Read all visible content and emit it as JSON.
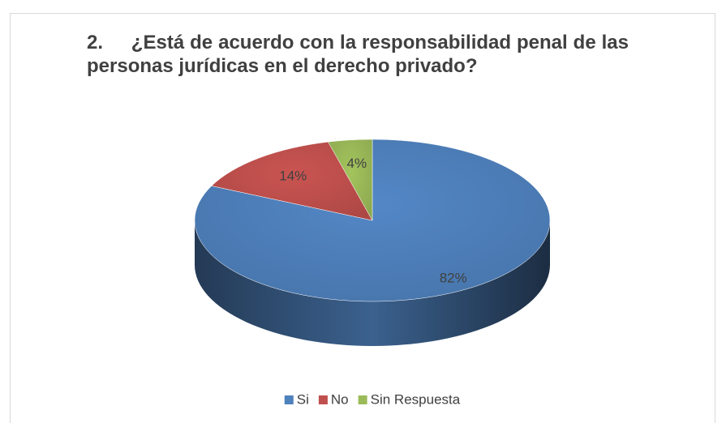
{
  "chart_data": {
    "type": "pie",
    "title": "2.     ¿Está de acuerdo con la responsabilidad penal de las personas jurídicas en el derecho privado?",
    "categories": [
      "Si",
      "No",
      "Sin Respuesta"
    ],
    "values": [
      82,
      14,
      4
    ],
    "value_labels": [
      "82%",
      "14%",
      "4%"
    ],
    "colors": [
      "#4f81bd",
      "#c0504d",
      "#9bbb59"
    ],
    "legend": "bottom"
  }
}
